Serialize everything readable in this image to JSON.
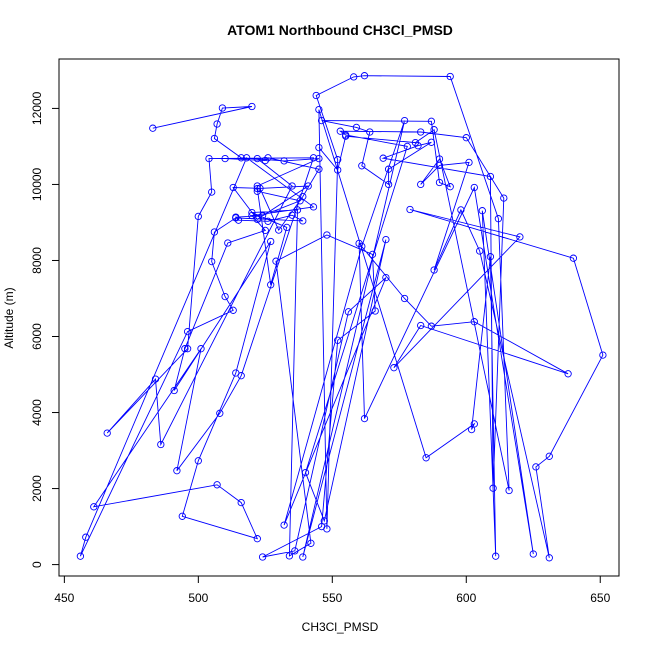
{
  "chart_data": {
    "type": "scatter",
    "title": "ATOM1 Northbound CH3Cl_PMSD",
    "xlabel": "CH3Cl_PMSD",
    "ylabel": "Altitude (m)",
    "xlim": [
      448,
      657
    ],
    "ylim": [
      -300,
      13300
    ],
    "xticks": [
      450,
      500,
      550,
      600,
      650
    ],
    "yticks": [
      0,
      2000,
      4000,
      6000,
      8000,
      10000,
      12000
    ],
    "connected": true,
    "grid": false,
    "series": [
      {
        "color": "#0000ff",
        "points": [
          [
            483,
            11480
          ],
          [
            520,
            12050
          ],
          [
            509,
            12010
          ],
          [
            507,
            11590
          ],
          [
            506,
            11210
          ],
          [
            516,
            10700
          ],
          [
            532,
            10620
          ],
          [
            545,
            10680
          ],
          [
            522,
            9960
          ],
          [
            522,
            9820
          ],
          [
            538,
            9570
          ],
          [
            524,
            9180
          ],
          [
            514,
            9140
          ],
          [
            515,
            9060
          ],
          [
            526,
            9030
          ],
          [
            535,
            9190
          ],
          [
            539,
            9040
          ],
          [
            514,
            9120
          ],
          [
            506,
            8750
          ],
          [
            505,
            7970
          ],
          [
            510,
            7050
          ],
          [
            513,
            6690
          ],
          [
            496,
            6130
          ],
          [
            456,
            220
          ],
          [
            458,
            720
          ],
          [
            518,
            10700
          ],
          [
            543,
            9410
          ],
          [
            520,
            9180
          ],
          [
            525,
            8790
          ],
          [
            511,
            8460
          ],
          [
            495,
            5680
          ],
          [
            491,
            4580
          ],
          [
            527,
            8500
          ],
          [
            514,
            5040
          ],
          [
            500,
            2730
          ],
          [
            494,
            1270
          ],
          [
            522,
            680
          ],
          [
            516,
            1630
          ],
          [
            507,
            2100
          ],
          [
            461,
            1520
          ],
          [
            501,
            5680
          ],
          [
            492,
            2470
          ],
          [
            508,
            3980
          ],
          [
            516,
            4970
          ],
          [
            543,
            10700
          ],
          [
            504,
            10680
          ],
          [
            505,
            9800
          ],
          [
            500,
            9160
          ],
          [
            496,
            5680
          ],
          [
            466,
            3460
          ],
          [
            484,
            4880
          ],
          [
            486,
            3160
          ],
          [
            535,
            9960
          ],
          [
            522,
            10680
          ],
          [
            510,
            10680
          ],
          [
            525,
            10630
          ],
          [
            526,
            10700
          ],
          [
            545,
            10400
          ],
          [
            539,
            9680
          ],
          [
            530,
            8800
          ],
          [
            523,
            9900
          ],
          [
            513,
            9920
          ],
          [
            522,
            9080
          ],
          [
            541,
            9960
          ],
          [
            522,
            9890
          ],
          [
            527,
            7360
          ],
          [
            533,
            8870
          ],
          [
            520,
            9260
          ],
          [
            537,
            9330
          ],
          [
            534,
            230
          ],
          [
            542,
            560
          ],
          [
            529,
            7980
          ],
          [
            548,
            8670
          ],
          [
            565,
            8160
          ],
          [
            566,
            6670
          ],
          [
            552,
            5900
          ],
          [
            546,
            1000
          ],
          [
            524,
            200
          ],
          [
            536,
            360
          ],
          [
            556,
            6650
          ],
          [
            570,
            7550
          ],
          [
            532,
            1040
          ],
          [
            561,
            8370
          ],
          [
            577,
            11680
          ],
          [
            539,
            200
          ],
          [
            570,
            8550
          ],
          [
            547,
            1150
          ],
          [
            540,
            2420
          ],
          [
            578,
            11000
          ],
          [
            555,
            11300
          ],
          [
            553,
            11400
          ],
          [
            583,
            11380
          ],
          [
            600,
            11230
          ],
          [
            614,
            9640
          ],
          [
            610,
            2010
          ],
          [
            609,
            10210
          ],
          [
            569,
            10690
          ],
          [
            582,
            11020
          ],
          [
            587,
            11110
          ],
          [
            571,
            10400
          ],
          [
            571,
            10000
          ],
          [
            561,
            10490
          ],
          [
            564,
            11380
          ],
          [
            559,
            11500
          ],
          [
            546,
            11680
          ],
          [
            587,
            11660
          ],
          [
            590,
            10050
          ],
          [
            594,
            9940
          ],
          [
            590,
            10670
          ],
          [
            583,
            10000
          ],
          [
            590,
            10500
          ],
          [
            601,
            10580
          ],
          [
            588,
            7750
          ],
          [
            598,
            9330
          ],
          [
            605,
            8250
          ],
          [
            631,
            180
          ],
          [
            626,
            2570
          ],
          [
            631,
            2850
          ],
          [
            651,
            5510
          ],
          [
            640,
            8060
          ],
          [
            579,
            9340
          ],
          [
            620,
            8620
          ],
          [
            573,
            5180
          ],
          [
            583,
            6290
          ],
          [
            638,
            5020
          ],
          [
            603,
            6390
          ],
          [
            587,
            6270
          ],
          [
            577,
            7000
          ],
          [
            560,
            8450
          ],
          [
            562,
            3840
          ],
          [
            603,
            9920
          ],
          [
            625,
            280
          ],
          [
            606,
            9310
          ],
          [
            611,
            220
          ],
          [
            609,
            8100
          ],
          [
            602,
            3550
          ],
          [
            603,
            3700
          ],
          [
            585,
            2810
          ],
          [
            545,
            11970
          ],
          [
            548,
            940
          ],
          [
            552,
            10650
          ],
          [
            544,
            12340
          ],
          [
            558,
            12830
          ],
          [
            562,
            12860
          ],
          [
            594,
            12840
          ],
          [
            612,
            9100
          ],
          [
            616,
            1950
          ],
          [
            588,
            11440
          ],
          [
            581,
            11100
          ],
          [
            555,
            11270
          ],
          [
            552,
            10380
          ],
          [
            545,
            10970
          ]
        ]
      }
    ]
  }
}
